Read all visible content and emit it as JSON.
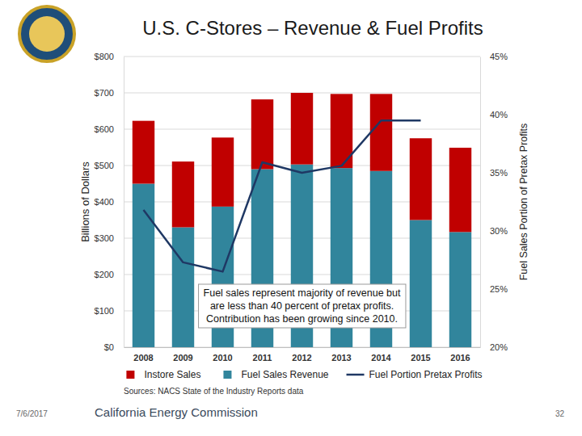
{
  "chart_data": {
    "type": "bar",
    "title": "U.S. C-Stores – Revenue & Fuel Profits",
    "y_label": "Billions of Dollars",
    "y2_label": "Fuel Sales Portion of Pretax Profits",
    "annotation": "Fuel sales represent majority of revenue but\nare less than 40 percent of pretax profits.\nContribution has been growing since 2010.",
    "source": "Sources: NACS State of the Industry Reports data",
    "categories": [
      "2008",
      "2009",
      "2010",
      "2011",
      "2012",
      "2013",
      "2014",
      "2015",
      "2016"
    ],
    "series": [
      {
        "name": "Fuel Sales Revenue",
        "color": "#31859c",
        "values": [
          450,
          330,
          387,
          490,
          503,
          493,
          485,
          350,
          317
        ]
      },
      {
        "name": "Instore Sales",
        "color": "#c00000",
        "values": [
          173,
          181,
          190,
          192,
          197,
          204,
          212,
          225,
          232
        ]
      },
      {
        "name": "Fuel Portion Pretax Profits",
        "color": "#1f3864",
        "type": "line",
        "axis": "y2",
        "values": [
          31.8,
          27.3,
          26.5,
          35.9,
          35.0,
          35.6,
          39.5,
          39.5,
          null
        ]
      }
    ],
    "stacked": true,
    "grid": true,
    "legend": "bottom",
    "ylim": [
      0,
      800
    ],
    "yticks": [
      {
        "value": 0,
        "label": "$0"
      },
      {
        "value": 100,
        "label": "$100"
      },
      {
        "value": 200,
        "label": "$200"
      },
      {
        "value": 300,
        "label": "$300"
      },
      {
        "value": 400,
        "label": "$400"
      },
      {
        "value": 500,
        "label": "$500"
      },
      {
        "value": 600,
        "label": "$600"
      },
      {
        "value": 700,
        "label": "$700"
      },
      {
        "value": 800,
        "label": "$800"
      }
    ],
    "y2lim": [
      20,
      45
    ],
    "y2ticks": [
      {
        "value": 20,
        "label": "20%"
      },
      {
        "value": 25,
        "label": "25%"
      },
      {
        "value": 30,
        "label": "30%"
      },
      {
        "value": 35,
        "label": "35%"
      },
      {
        "value": 40,
        "label": "40%"
      },
      {
        "value": 45,
        "label": "45%"
      }
    ]
  },
  "footer": {
    "date": "7/6/2017",
    "organization": "California Energy Commission",
    "page": "32"
  }
}
